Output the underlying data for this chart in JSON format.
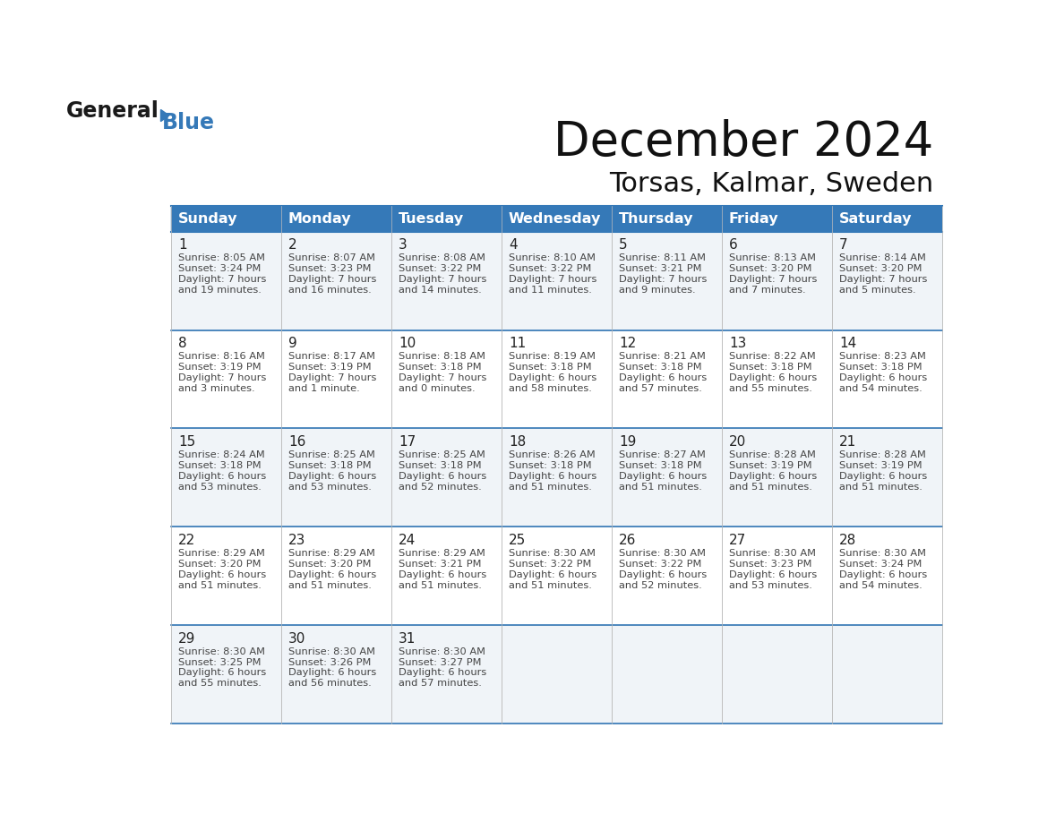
{
  "title": "December 2024",
  "subtitle": "Torsas, Kalmar, Sweden",
  "header_color": "#3579B8",
  "header_text_color": "#FFFFFF",
  "background_color": "#FFFFFF",
  "cell_bg_odd": "#F0F4F8",
  "cell_bg_even": "#FFFFFF",
  "border_color": "#3579B8",
  "thin_border_color": "#BBBBBB",
  "day_headers": [
    "Sunday",
    "Monday",
    "Tuesday",
    "Wednesday",
    "Thursday",
    "Friday",
    "Saturday"
  ],
  "weeks": [
    [
      {
        "day": "1",
        "sunrise": "8:05 AM",
        "sunset": "3:24 PM",
        "daylight_h": "7 hours",
        "daylight_m": "and 19 minutes."
      },
      {
        "day": "2",
        "sunrise": "8:07 AM",
        "sunset": "3:23 PM",
        "daylight_h": "7 hours",
        "daylight_m": "and 16 minutes."
      },
      {
        "day": "3",
        "sunrise": "8:08 AM",
        "sunset": "3:22 PM",
        "daylight_h": "7 hours",
        "daylight_m": "and 14 minutes."
      },
      {
        "day": "4",
        "sunrise": "8:10 AM",
        "sunset": "3:22 PM",
        "daylight_h": "7 hours",
        "daylight_m": "and 11 minutes."
      },
      {
        "day": "5",
        "sunrise": "8:11 AM",
        "sunset": "3:21 PM",
        "daylight_h": "7 hours",
        "daylight_m": "and 9 minutes."
      },
      {
        "day": "6",
        "sunrise": "8:13 AM",
        "sunset": "3:20 PM",
        "daylight_h": "7 hours",
        "daylight_m": "and 7 minutes."
      },
      {
        "day": "7",
        "sunrise": "8:14 AM",
        "sunset": "3:20 PM",
        "daylight_h": "7 hours",
        "daylight_m": "and 5 minutes."
      }
    ],
    [
      {
        "day": "8",
        "sunrise": "8:16 AM",
        "sunset": "3:19 PM",
        "daylight_h": "7 hours",
        "daylight_m": "and 3 minutes."
      },
      {
        "day": "9",
        "sunrise": "8:17 AM",
        "sunset": "3:19 PM",
        "daylight_h": "7 hours",
        "daylight_m": "and 1 minute."
      },
      {
        "day": "10",
        "sunrise": "8:18 AM",
        "sunset": "3:18 PM",
        "daylight_h": "7 hours",
        "daylight_m": "and 0 minutes."
      },
      {
        "day": "11",
        "sunrise": "8:19 AM",
        "sunset": "3:18 PM",
        "daylight_h": "6 hours",
        "daylight_m": "and 58 minutes."
      },
      {
        "day": "12",
        "sunrise": "8:21 AM",
        "sunset": "3:18 PM",
        "daylight_h": "6 hours",
        "daylight_m": "and 57 minutes."
      },
      {
        "day": "13",
        "sunrise": "8:22 AM",
        "sunset": "3:18 PM",
        "daylight_h": "6 hours",
        "daylight_m": "and 55 minutes."
      },
      {
        "day": "14",
        "sunrise": "8:23 AM",
        "sunset": "3:18 PM",
        "daylight_h": "6 hours",
        "daylight_m": "and 54 minutes."
      }
    ],
    [
      {
        "day": "15",
        "sunrise": "8:24 AM",
        "sunset": "3:18 PM",
        "daylight_h": "6 hours",
        "daylight_m": "and 53 minutes."
      },
      {
        "day": "16",
        "sunrise": "8:25 AM",
        "sunset": "3:18 PM",
        "daylight_h": "6 hours",
        "daylight_m": "and 53 minutes."
      },
      {
        "day": "17",
        "sunrise": "8:25 AM",
        "sunset": "3:18 PM",
        "daylight_h": "6 hours",
        "daylight_m": "and 52 minutes."
      },
      {
        "day": "18",
        "sunrise": "8:26 AM",
        "sunset": "3:18 PM",
        "daylight_h": "6 hours",
        "daylight_m": "and 51 minutes."
      },
      {
        "day": "19",
        "sunrise": "8:27 AM",
        "sunset": "3:18 PM",
        "daylight_h": "6 hours",
        "daylight_m": "and 51 minutes."
      },
      {
        "day": "20",
        "sunrise": "8:28 AM",
        "sunset": "3:19 PM",
        "daylight_h": "6 hours",
        "daylight_m": "and 51 minutes."
      },
      {
        "day": "21",
        "sunrise": "8:28 AM",
        "sunset": "3:19 PM",
        "daylight_h": "6 hours",
        "daylight_m": "and 51 minutes."
      }
    ],
    [
      {
        "day": "22",
        "sunrise": "8:29 AM",
        "sunset": "3:20 PM",
        "daylight_h": "6 hours",
        "daylight_m": "and 51 minutes."
      },
      {
        "day": "23",
        "sunrise": "8:29 AM",
        "sunset": "3:20 PM",
        "daylight_h": "6 hours",
        "daylight_m": "and 51 minutes."
      },
      {
        "day": "24",
        "sunrise": "8:29 AM",
        "sunset": "3:21 PM",
        "daylight_h": "6 hours",
        "daylight_m": "and 51 minutes."
      },
      {
        "day": "25",
        "sunrise": "8:30 AM",
        "sunset": "3:22 PM",
        "daylight_h": "6 hours",
        "daylight_m": "and 51 minutes."
      },
      {
        "day": "26",
        "sunrise": "8:30 AM",
        "sunset": "3:22 PM",
        "daylight_h": "6 hours",
        "daylight_m": "and 52 minutes."
      },
      {
        "day": "27",
        "sunrise": "8:30 AM",
        "sunset": "3:23 PM",
        "daylight_h": "6 hours",
        "daylight_m": "and 53 minutes."
      },
      {
        "day": "28",
        "sunrise": "8:30 AM",
        "sunset": "3:24 PM",
        "daylight_h": "6 hours",
        "daylight_m": "and 54 minutes."
      }
    ],
    [
      {
        "day": "29",
        "sunrise": "8:30 AM",
        "sunset": "3:25 PM",
        "daylight_h": "6 hours",
        "daylight_m": "and 55 minutes."
      },
      {
        "day": "30",
        "sunrise": "8:30 AM",
        "sunset": "3:26 PM",
        "daylight_h": "6 hours",
        "daylight_m": "and 56 minutes."
      },
      {
        "day": "31",
        "sunrise": "8:30 AM",
        "sunset": "3:27 PM",
        "daylight_h": "6 hours",
        "daylight_m": "and 57 minutes."
      },
      null,
      null,
      null,
      null
    ]
  ],
  "logo_general_color": "#1a1a1a",
  "logo_blue_color": "#3579B8",
  "logo_triangle_color": "#3579B8"
}
